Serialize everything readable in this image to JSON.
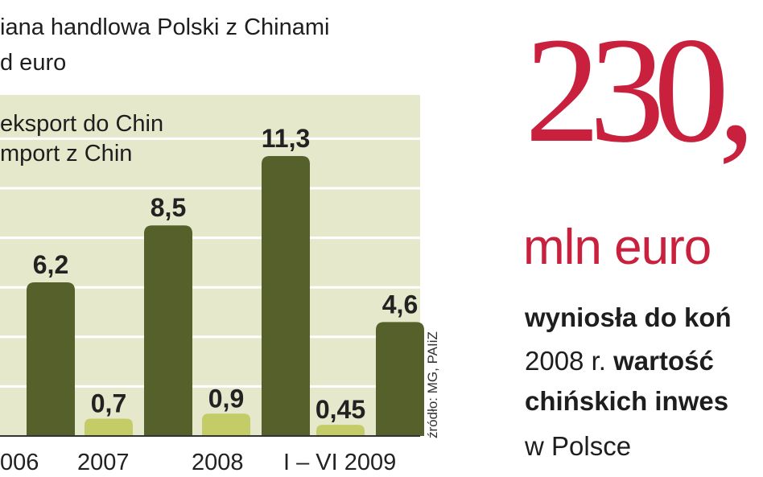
{
  "chart_data": {
    "type": "bar",
    "title_line1": "iana handlowa Polski z Chinami",
    "title_line2": "d euro",
    "categories": [
      "006",
      "2007",
      "2008",
      "I – VI 2009"
    ],
    "series": [
      {
        "name": "eksport do Chin",
        "values": [
          null,
          0.7,
          0.9,
          0.45
        ],
        "color": "#c3cc66"
      },
      {
        "name": "mport z Chin",
        "values": [
          6.2,
          8.5,
          11.3,
          4.6
        ],
        "color": "#55602b"
      }
    ],
    "value_labels": {
      "export": [
        null,
        "0,7",
        "0,9",
        "0,45"
      ],
      "import": [
        "6,2",
        "8,5",
        "11,3",
        "4,6"
      ]
    },
    "ylim": [
      0,
      12
    ],
    "grid": true,
    "background": "#e6e8cc",
    "gridline_color": "#ffffff",
    "source": "źródło: MG, PAIiZ"
  },
  "callout": {
    "number": "230,",
    "unit": "mln euro",
    "line1": "wyniosła do koń",
    "line2_normal": "2008 r. ",
    "line2_bold": "wartość",
    "line3": "chińskich inwes",
    "line4": "w Polsce",
    "accent_color": "#c8203d"
  }
}
